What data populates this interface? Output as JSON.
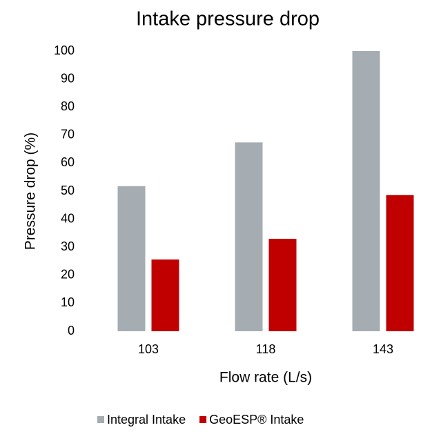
{
  "chart_data": {
    "type": "bar",
    "title": "Intake pressure drop",
    "x_label": "Flow rate (L/s)",
    "y_label": "Pressure drop (%)",
    "categories": [
      "103",
      "118",
      "143"
    ],
    "series": [
      {
        "name": "Integral Intake",
        "color": "#a5acb2",
        "values": [
          51.8,
          67.4,
          100
        ]
      },
      {
        "name": "GeoESP® Intake",
        "color": "#c00000",
        "values": [
          25.6,
          33,
          48.6
        ]
      }
    ],
    "ylim": [
      0,
      100
    ],
    "yticks": [
      0,
      10,
      20,
      30,
      40,
      50,
      60,
      70,
      80,
      90,
      100
    ],
    "grid": false,
    "legend": "bottom"
  }
}
